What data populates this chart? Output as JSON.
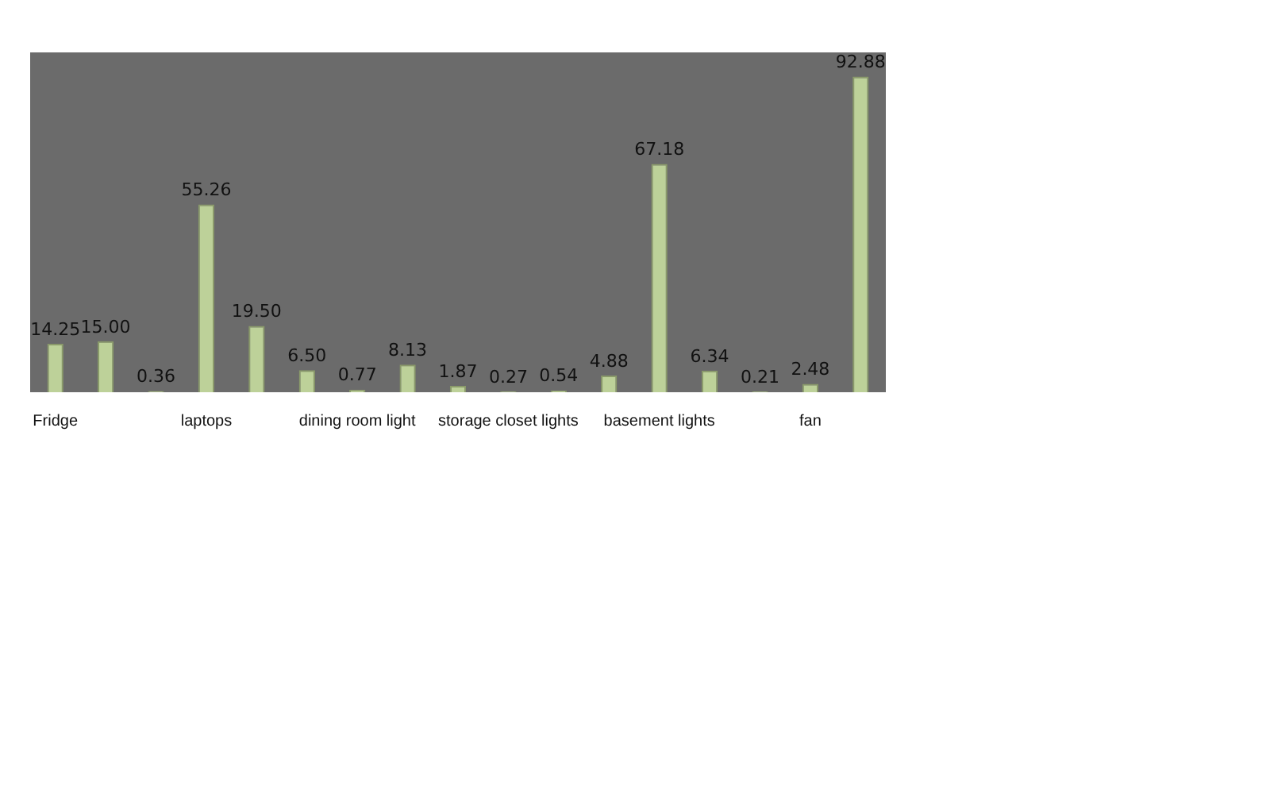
{
  "chart_data": {
    "type": "bar",
    "categories": [
      "Fridge",
      null,
      null,
      "laptops",
      null,
      null,
      "dining room light",
      null,
      null,
      "storage closet lights",
      null,
      null,
      "basement lights",
      null,
      null,
      "fan",
      null
    ],
    "values": [
      14.25,
      15.0,
      0.36,
      55.26,
      19.5,
      6.5,
      0.77,
      8.13,
      1.87,
      0.27,
      0.54,
      4.88,
      67.18,
      6.34,
      0.21,
      2.48,
      92.88
    ],
    "value_labels": [
      "14.25",
      "15.00",
      "0.36",
      "55.26",
      "19.50",
      "6.50",
      "0.77",
      "8.13",
      "1.87",
      "0.27",
      "0.54",
      "4.88",
      "67.18",
      "6.34",
      "0.21",
      "2.48",
      "92.88"
    ],
    "color": "#bdd199"
  }
}
